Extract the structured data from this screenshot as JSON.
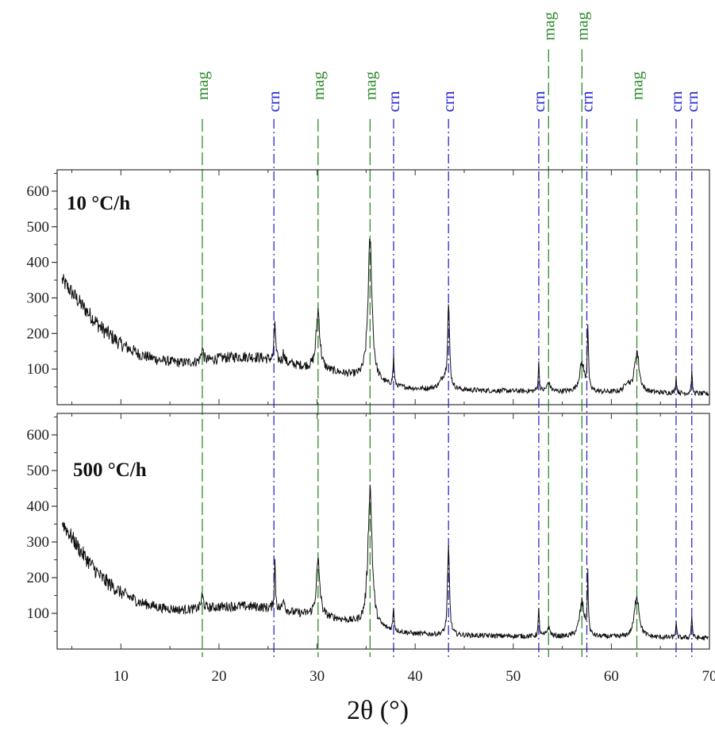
{
  "chart_data": {
    "type": "line",
    "xlabel": "2θ (°)",
    "ylabel": "",
    "xlim": [
      3.5,
      70
    ],
    "ylim": [
      0,
      660
    ],
    "x_ticks": [
      10,
      20,
      30,
      40,
      50,
      60,
      70
    ],
    "y_ticks": [
      100,
      200,
      300,
      400,
      500,
      600
    ],
    "grid": false,
    "colors": {
      "pattern": "#111111",
      "mag": "#2e8b2e",
      "crn": "#2a2acc"
    },
    "reference_lines": [
      {
        "label": "mag",
        "x": 18.3
      },
      {
        "label": "crn",
        "x": 25.6
      },
      {
        "label": "mag",
        "x": 30.1
      },
      {
        "label": "mag",
        "x": 35.4
      },
      {
        "label": "crn",
        "x": 37.8
      },
      {
        "label": "crn",
        "x": 43.4
      },
      {
        "label": "crn",
        "x": 52.6
      },
      {
        "label": "mag",
        "x": 53.6
      },
      {
        "label": "mag",
        "x": 57.0
      },
      {
        "label": "crn",
        "x": 57.5
      },
      {
        "label": "mag",
        "x": 62.6
      },
      {
        "label": "crn",
        "x": 66.6
      },
      {
        "label": "crn",
        "x": 68.2
      }
    ],
    "panels": [
      {
        "name": "10 °C/h",
        "background": [
          [
            4,
            350
          ],
          [
            6,
            280
          ],
          [
            8,
            215
          ],
          [
            10,
            170
          ],
          [
            12,
            140
          ],
          [
            14,
            125
          ],
          [
            16,
            118
          ],
          [
            18,
            120
          ],
          [
            20,
            130
          ],
          [
            22,
            135
          ],
          [
            24,
            133
          ],
          [
            26,
            122
          ],
          [
            28,
            110
          ],
          [
            30,
            100
          ],
          [
            32,
            90
          ],
          [
            34,
            78
          ],
          [
            36,
            62
          ],
          [
            38,
            50
          ],
          [
            40,
            44
          ],
          [
            45,
            40
          ],
          [
            50,
            38
          ],
          [
            55,
            36
          ],
          [
            60,
            34
          ],
          [
            65,
            33
          ],
          [
            70,
            30
          ]
        ],
        "peaks": [
          [
            18.3,
            35,
            0.15
          ],
          [
            25.7,
            115,
            0.08
          ],
          [
            26.6,
            30,
            0.1
          ],
          [
            30.1,
            165,
            0.22
          ],
          [
            35.4,
            395,
            0.25
          ],
          [
            37.8,
            80,
            0.07
          ],
          [
            43.4,
            230,
            0.12
          ],
          [
            42.9,
            30,
            0.45
          ],
          [
            52.6,
            75,
            0.07
          ],
          [
            53.6,
            25,
            0.2
          ],
          [
            57.0,
            80,
            0.3
          ],
          [
            57.6,
            180,
            0.07
          ],
          [
            61.6,
            25,
            0.3
          ],
          [
            62.6,
            115,
            0.28
          ],
          [
            66.6,
            45,
            0.07
          ],
          [
            68.2,
            55,
            0.07
          ]
        ],
        "noise": 14
      },
      {
        "name": "500 °C/h",
        "background": [
          [
            4,
            355
          ],
          [
            6,
            270
          ],
          [
            8,
            200
          ],
          [
            10,
            158
          ],
          [
            12,
            130
          ],
          [
            14,
            116
          ],
          [
            16,
            110
          ],
          [
            18,
            112
          ],
          [
            20,
            118
          ],
          [
            22,
            120
          ],
          [
            24,
            118
          ],
          [
            26,
            110
          ],
          [
            28,
            100
          ],
          [
            30,
            92
          ],
          [
            32,
            84
          ],
          [
            34,
            72
          ],
          [
            36,
            58
          ],
          [
            38,
            48
          ],
          [
            40,
            42
          ],
          [
            45,
            38
          ],
          [
            50,
            36
          ],
          [
            55,
            34
          ],
          [
            60,
            33
          ],
          [
            65,
            32
          ],
          [
            70,
            30
          ]
        ],
        "peaks": [
          [
            18.3,
            35,
            0.15
          ],
          [
            25.7,
            130,
            0.08
          ],
          [
            26.6,
            40,
            0.1
          ],
          [
            30.1,
            150,
            0.22
          ],
          [
            35.4,
            390,
            0.25
          ],
          [
            37.8,
            65,
            0.07
          ],
          [
            43.4,
            240,
            0.12
          ],
          [
            52.6,
            70,
            0.07
          ],
          [
            53.6,
            25,
            0.2
          ],
          [
            57.0,
            95,
            0.3
          ],
          [
            57.6,
            150,
            0.07
          ],
          [
            62.6,
            120,
            0.28
          ],
          [
            66.6,
            40,
            0.07
          ],
          [
            68.2,
            60,
            0.07
          ]
        ],
        "noise": 14
      }
    ]
  }
}
